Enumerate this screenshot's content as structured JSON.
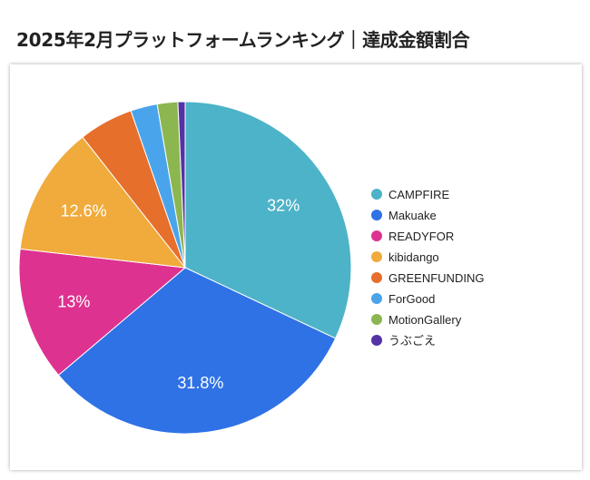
{
  "title": "2025年2月プラットフォームランキング｜達成金額割合",
  "chart_data": {
    "type": "pie",
    "labels": [
      "CAMPFIRE",
      "Makuake",
      "READYFOR",
      "kibidango",
      "GREENFUNDING",
      "ForGood",
      "MotionGallery",
      "うぶごえ"
    ],
    "values": [
      32,
      31.8,
      13,
      12.6,
      5.3,
      2.6,
      2.0,
      0.7
    ],
    "data_labels": [
      "32%",
      "31.8%",
      "13%",
      "12.6%",
      "",
      "",
      "",
      ""
    ],
    "colors": [
      "#4db3c8",
      "#2f72e6",
      "#dd3290",
      "#f0ab3c",
      "#e66f2c",
      "#4aa4eb",
      "#8cb650",
      "#5333a6"
    ],
    "legend_position": "right",
    "title": "2025年2月プラットフォームランキング｜達成金額割合"
  }
}
